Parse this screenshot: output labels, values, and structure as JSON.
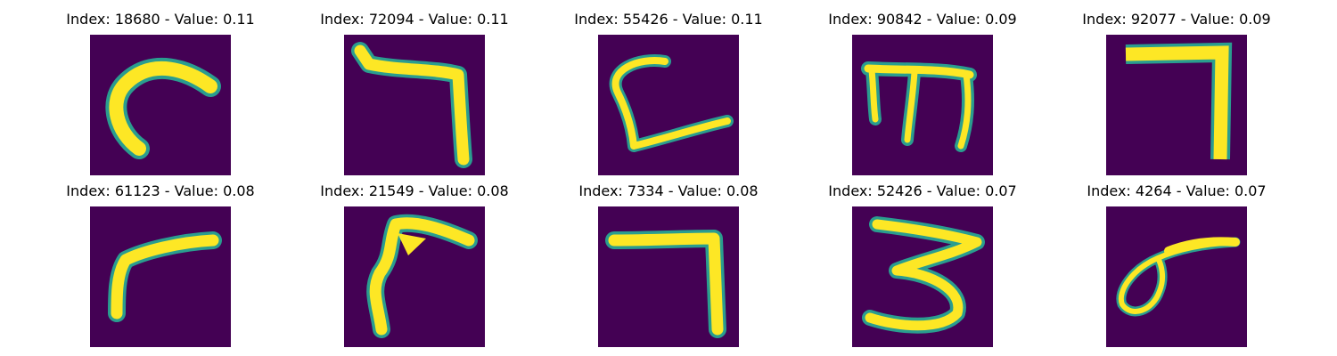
{
  "panels": [
    {
      "title": "Index: 18680 - Value: 0.11",
      "glyph": "stroke-curve-left"
    },
    {
      "title": "Index: 72094 - Value: 0.11",
      "glyph": "stroke-seven-wave"
    },
    {
      "title": "Index: 55426 - Value: 0.11",
      "glyph": "stroke-loop-down"
    },
    {
      "title": "Index: 90842 - Value: 0.09",
      "glyph": "stroke-three-prong"
    },
    {
      "title": "Index: 92077 - Value: 0.09",
      "glyph": "stroke-seven-straight"
    },
    {
      "title": "Index: 61123 - Value: 0.08",
      "glyph": "stroke-hook"
    },
    {
      "title": "Index: 21549 - Value: 0.08",
      "glyph": "stroke-wing"
    },
    {
      "title": "Index: 7334 - Value: 0.08",
      "glyph": "stroke-seven-long"
    },
    {
      "title": "Index: 52426 - Value: 0.07",
      "glyph": "stroke-three"
    },
    {
      "title": "Index: 4264 - Value: 0.07",
      "glyph": "stroke-loop-tail"
    }
  ],
  "colors": {
    "background": "#440154",
    "stroke_core": "#fde725",
    "stroke_edge": "#2a9d8f"
  }
}
